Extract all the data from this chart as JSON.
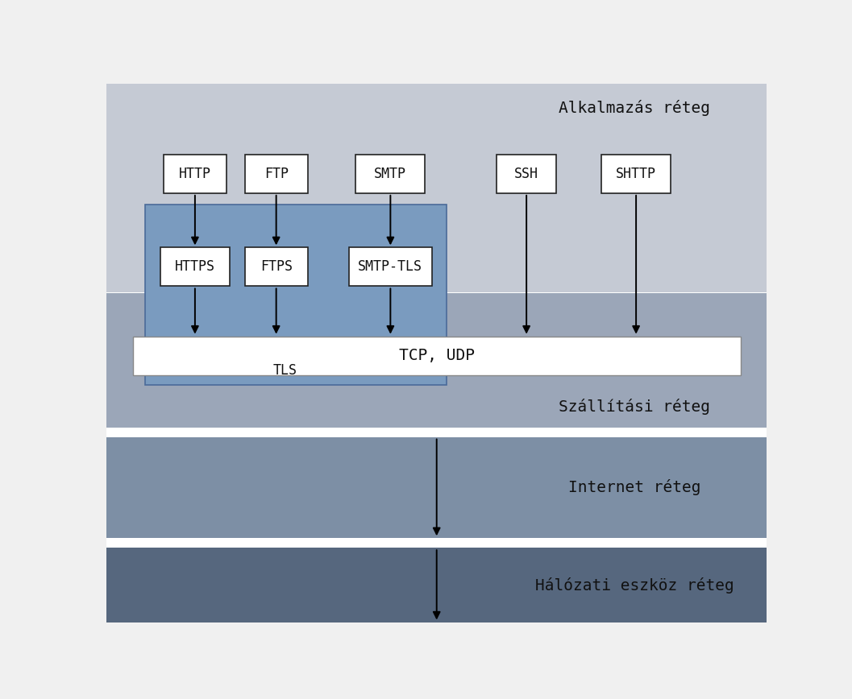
{
  "bg_color": "#f0f0f0",
  "layer_app_color": "#c5cad4",
  "layer_transport_color": "#9ba6b8",
  "layer_internet_color": "#7d8fa5",
  "layer_network_color": "#56677e",
  "tls_box_color": "#7a9bbf",
  "white_box_color": "#ffffff",
  "text_color": "#111111",
  "box_edge_color": "#222222",
  "layer_app_label": "Alkalmazás réteg",
  "layer_transport_label": "Szállítási réteg",
  "layer_internet_label": "Internet réteg",
  "layer_network_label": "Hálózati eszköz réteg",
  "tls_label": "TLS",
  "tcp_udp_label": "TCP, UDP",
  "font_size_layer": 14,
  "font_size_box": 12,
  "font_family": "monospace"
}
